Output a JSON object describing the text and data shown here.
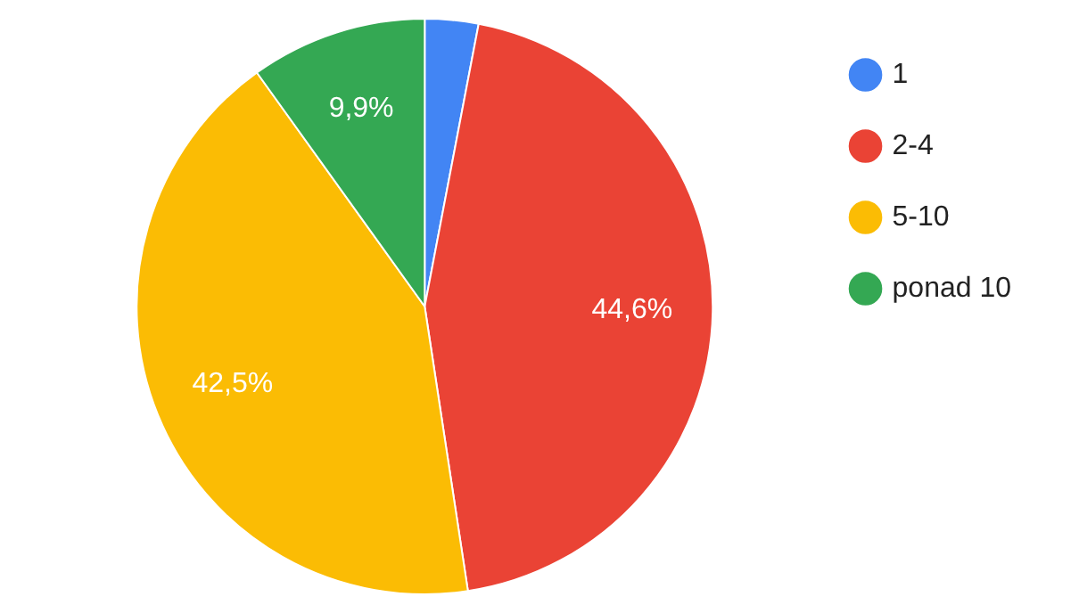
{
  "chart_data": {
    "type": "pie",
    "categories": [
      "1",
      "2-4",
      "5-10",
      "ponad 10"
    ],
    "values": [
      3.0,
      44.6,
      42.5,
      9.9
    ],
    "value_labels": [
      null,
      "44,6%",
      "42,5%",
      "9,9%"
    ],
    "colors": [
      "#4285f4",
      "#ea4335",
      "#fbbc04",
      "#34a853"
    ],
    "legend": "right"
  }
}
